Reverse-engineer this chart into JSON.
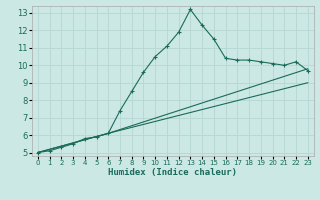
{
  "title": "",
  "xlabel": "Humidex (Indice chaleur)",
  "ylabel": "",
  "bg_color": "#cce8e5",
  "grid_color": "#b8d8d5",
  "line_color": "#1a6b5a",
  "xlim": [
    -0.5,
    23.5
  ],
  "ylim": [
    4.8,
    13.4
  ],
  "yticks": [
    5,
    6,
    7,
    8,
    9,
    10,
    11,
    12,
    13
  ],
  "xticks": [
    0,
    1,
    2,
    3,
    4,
    5,
    6,
    7,
    8,
    9,
    10,
    11,
    12,
    13,
    14,
    15,
    16,
    17,
    18,
    19,
    20,
    21,
    22,
    23
  ],
  "series1_x": [
    0,
    1,
    2,
    3,
    4,
    5,
    6,
    7,
    8,
    9,
    10,
    11,
    12,
    13,
    14,
    15,
    16,
    17,
    18,
    19,
    20,
    21,
    22,
    23
  ],
  "series1_y": [
    5.0,
    5.1,
    5.3,
    5.5,
    5.8,
    5.9,
    6.1,
    7.4,
    8.5,
    9.6,
    10.5,
    11.1,
    11.9,
    13.2,
    12.3,
    11.5,
    10.4,
    10.3,
    10.3,
    10.2,
    10.1,
    10.0,
    10.2,
    9.7
  ],
  "series2_x": [
    0,
    6,
    23
  ],
  "series2_y": [
    5.0,
    6.1,
    9.8
  ],
  "series3_x": [
    0,
    6,
    23
  ],
  "series3_y": [
    5.0,
    6.1,
    9.0
  ]
}
